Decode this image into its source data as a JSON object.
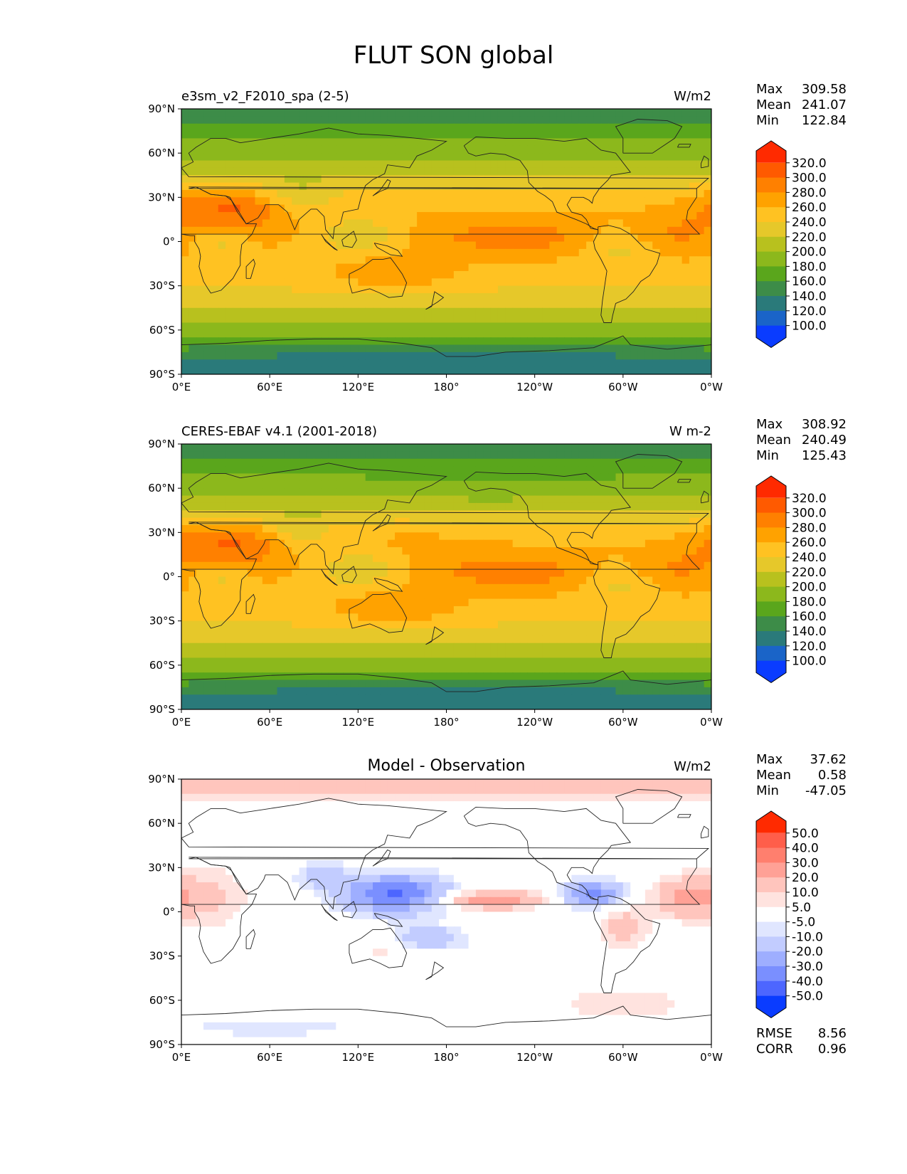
{
  "figure": {
    "title": "FLUT SON global"
  },
  "chart_data": [
    {
      "type": "heatmap",
      "subtitle_left": "e3sm_v2_F2010_spa (2-5)",
      "subtitle_center": "",
      "units": "W/m2",
      "stats": {
        "max_label": "Max",
        "max": "309.58",
        "mean_label": "Mean",
        "mean": "241.07",
        "min_label": "Min",
        "min": "122.84"
      },
      "xticks": [
        "0°E",
        "60°E",
        "120°E",
        "180°",
        "120°W",
        "60°W",
        "0°W"
      ],
      "yticks": [
        "90°N",
        "60°N",
        "30°N",
        "0°",
        "30°S",
        "60°S",
        "90°S"
      ],
      "xlim": [
        0,
        360
      ],
      "ylim": [
        -90,
        90
      ],
      "colorbar": {
        "levels": [
          "320.0",
          "300.0",
          "280.0",
          "260.0",
          "240.0",
          "220.0",
          "200.0",
          "180.0",
          "160.0",
          "140.0",
          "120.0",
          "100.0"
        ],
        "colors": [
          "#ff2a00",
          "#ff5a00",
          "#ff8000",
          "#ffa200",
          "#ffc222",
          "#e6c82a",
          "#b8c11e",
          "#8cb81c",
          "#5aa61c",
          "#3d8c48",
          "#2a7a7a",
          "#1a64c8",
          "#0a3cff"
        ]
      }
    },
    {
      "type": "heatmap",
      "subtitle_left": "CERES-EBAF v4.1 (2001-2018)",
      "subtitle_center": "",
      "units": "W m-2",
      "stats": {
        "max_label": "Max",
        "max": "308.92",
        "mean_label": "Mean",
        "mean": "240.49",
        "min_label": "Min",
        "min": "125.43"
      },
      "xticks": [
        "0°E",
        "60°E",
        "120°E",
        "180°",
        "120°W",
        "60°W",
        "0°W"
      ],
      "yticks": [
        "90°N",
        "60°N",
        "30°N",
        "0°",
        "30°S",
        "60°S",
        "90°S"
      ],
      "xlim": [
        0,
        360
      ],
      "ylim": [
        -90,
        90
      ],
      "colorbar": {
        "levels": [
          "320.0",
          "300.0",
          "280.0",
          "260.0",
          "240.0",
          "220.0",
          "200.0",
          "180.0",
          "160.0",
          "140.0",
          "120.0",
          "100.0"
        ],
        "colors": [
          "#ff2a00",
          "#ff5a00",
          "#ff8000",
          "#ffa200",
          "#ffc222",
          "#e6c82a",
          "#b8c11e",
          "#8cb81c",
          "#5aa61c",
          "#3d8c48",
          "#2a7a7a",
          "#1a64c8",
          "#0a3cff"
        ]
      }
    },
    {
      "type": "heatmap",
      "subtitle_left": "",
      "subtitle_center": "Model - Observation",
      "units": "W/m2",
      "stats": {
        "max_label": "Max",
        "max": "37.62",
        "mean_label": "Mean",
        "mean": "0.58",
        "min_label": "Min",
        "min": "-47.05"
      },
      "metrics": {
        "rmse_label": "RMSE",
        "rmse": "8.56",
        "corr_label": "CORR",
        "corr": "0.96"
      },
      "xticks": [
        "0°E",
        "60°E",
        "120°E",
        "180°",
        "120°W",
        "60°W",
        "0°W"
      ],
      "yticks": [
        "90°N",
        "60°N",
        "30°N",
        "0°",
        "30°S",
        "60°S",
        "90°S"
      ],
      "xlim": [
        0,
        360
      ],
      "ylim": [
        -90,
        90
      ],
      "colorbar": {
        "levels": [
          "50.0",
          "40.0",
          "30.0",
          "20.0",
          "10.0",
          "5.0",
          "-5.0",
          "-10.0",
          "-20.0",
          "-30.0",
          "-40.0",
          "-50.0"
        ],
        "colors": [
          "#ff2a00",
          "#ff5e4a",
          "#ff7f6e",
          "#ffa196",
          "#ffc5bd",
          "#ffe3df",
          "#ffffff",
          "#e0e6ff",
          "#c2ccff",
          "#9eaeff",
          "#7a8fff",
          "#4d66ff",
          "#0a3cff"
        ]
      }
    }
  ]
}
